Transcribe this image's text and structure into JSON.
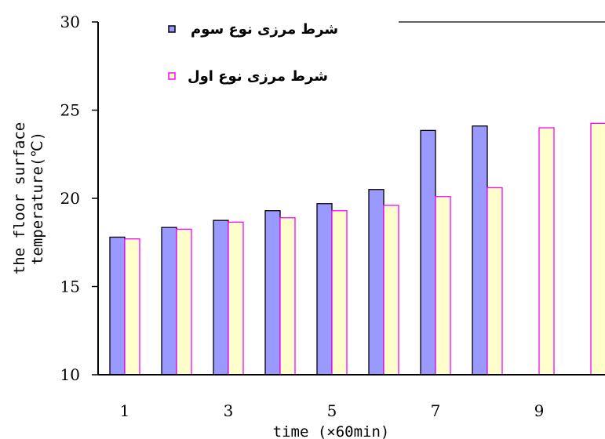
{
  "chart_data": {
    "type": "bar",
    "categories": [
      "1",
      "2",
      "3",
      "4",
      "5",
      "6",
      "7",
      "8",
      "9",
      "10"
    ],
    "x_tick_labels": [
      "1",
      "3",
      "5",
      "7",
      "9"
    ],
    "x_tick_positions": [
      1,
      3,
      5,
      7,
      9
    ],
    "y_ticks": [
      10,
      15,
      20,
      25,
      30
    ],
    "series": [
      {
        "name": "شرط مرزی نوع سوم",
        "values": [
          17.8,
          18.35,
          18.75,
          19.3,
          19.7,
          20.5,
          23.85,
          24.1,
          null,
          null
        ],
        "fill": "#9999ff",
        "stroke": "#000000"
      },
      {
        "name": "شرط مرزی نوع اول",
        "values": [
          17.7,
          18.25,
          18.65,
          18.9,
          19.3,
          19.6,
          20.1,
          20.6,
          24.0,
          24.25
        ],
        "fill": "#ffffcc",
        "stroke": "#ff00ff"
      }
    ],
    "xlabel": "time (×60min)",
    "ylabel": [
      "the floor surface",
      "temperature(℃)"
    ],
    "ylim": [
      10,
      30
    ],
    "grid": false,
    "legend_position": "top"
  }
}
